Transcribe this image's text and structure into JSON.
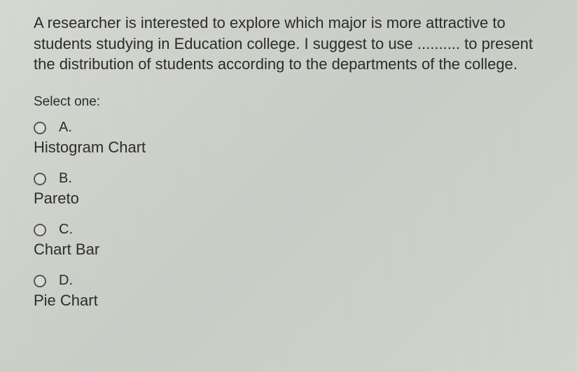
{
  "question": {
    "text": "A researcher is interested to explore which major is more attractive to students studying in Education college. I suggest to use .......... to present the distribution of students according to the departments of the college.",
    "prompt": "Select one:"
  },
  "options": [
    {
      "letter": "A.",
      "label": "Histogram Chart",
      "selected": false
    },
    {
      "letter": "B.",
      "label": "Pareto",
      "selected": false
    },
    {
      "letter": "C.",
      "label": "Chart Bar",
      "selected": false
    },
    {
      "letter": "D.",
      "label": "Pie Chart",
      "selected": false
    }
  ],
  "style": {
    "background_color": "#d0d4cc",
    "text_color": "#2a2a2a",
    "question_fontsize": 22,
    "prompt_fontsize": 19,
    "option_letter_fontsize": 20,
    "option_label_fontsize": 22,
    "radio_border_color": "#555",
    "radio_size": 18
  }
}
